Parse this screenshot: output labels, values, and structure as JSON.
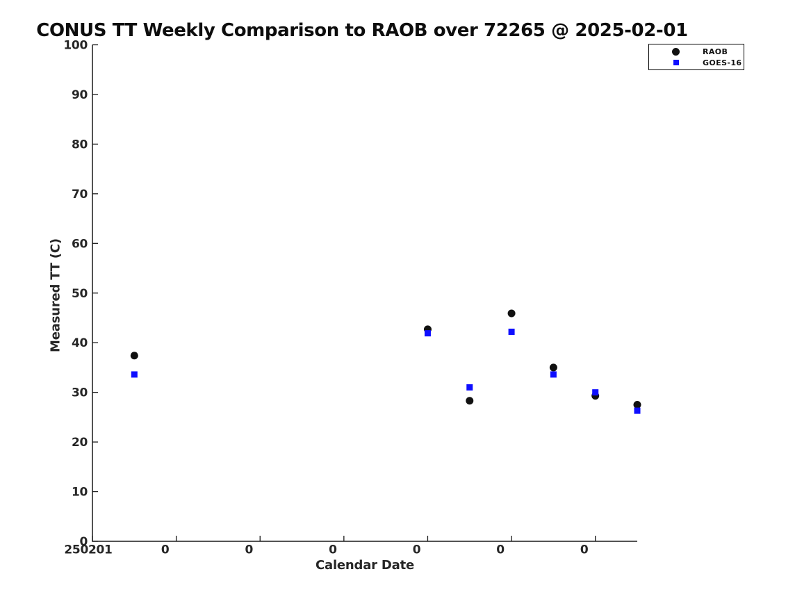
{
  "figure": {
    "background": "#ffffff",
    "axis_color": "#1a1a1a",
    "text_color": "#262626"
  },
  "chart_data": {
    "type": "scatter",
    "title": "CONUS TT Weekly Comparison to RAOB over 72265 @ 2025-02-01",
    "xlabel": "Calendar Date",
    "ylabel": "Measured TT (C)",
    "grid": false,
    "x_axis": {
      "range": [
        0,
        6.5
      ],
      "tick_values": [
        0,
        1,
        2,
        3,
        4,
        5,
        6
      ],
      "tick_labels": [
        "250201",
        "0",
        "0",
        "0",
        "0",
        "0",
        "0"
      ]
    },
    "y_axis": {
      "range": [
        0,
        100
      ],
      "tick_values": [
        0,
        10,
        20,
        30,
        40,
        50,
        60,
        70,
        80,
        90,
        100
      ],
      "tick_labels": [
        "0",
        "10",
        "20",
        "30",
        "40",
        "50",
        "60",
        "70",
        "80",
        "90",
        "100"
      ]
    },
    "legend": {
      "position": "top-right",
      "entries": [
        {
          "label": "RAOB",
          "marker": "circle",
          "color": "#111111"
        },
        {
          "label": "GOES-16",
          "marker": "square",
          "color": "#0f0fff"
        }
      ]
    },
    "series": [
      {
        "name": "RAOB",
        "marker": "circle",
        "color": "#111111",
        "x": [
          0.5,
          4.0,
          4.5,
          5.0,
          5.5,
          6.0,
          6.5
        ],
        "y": [
          37.4,
          42.7,
          28.3,
          45.9,
          35.0,
          29.3,
          27.5
        ]
      },
      {
        "name": "GOES-16",
        "marker": "square",
        "color": "#0f0fff",
        "x": [
          0.5,
          4.0,
          4.5,
          5.0,
          5.5,
          6.0,
          6.5
        ],
        "y": [
          33.6,
          41.9,
          31.0,
          42.2,
          33.6,
          30.0,
          26.3
        ]
      }
    ]
  }
}
